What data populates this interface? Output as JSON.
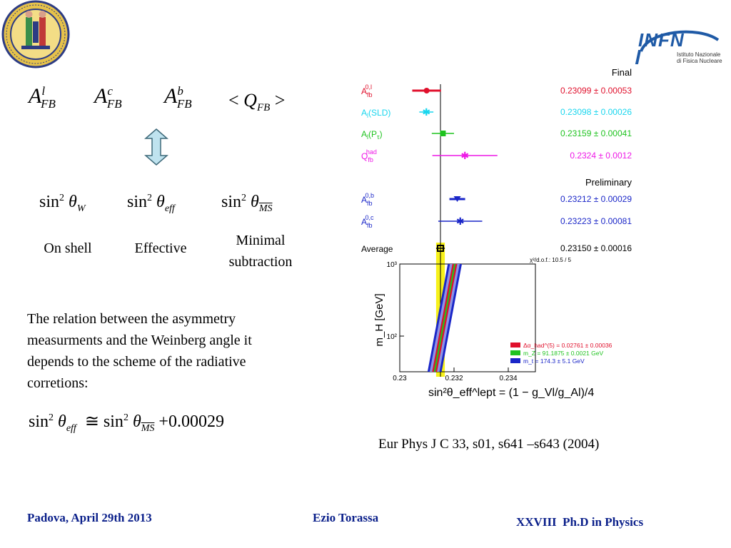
{
  "logos": {
    "seal_lettering": "UNIVERSITAS STUDII PATAVINI",
    "infn_wordmark": "INFN",
    "infn_line1": "Istituto Nazionale",
    "infn_line2": "di Fisica Nucleare"
  },
  "observables": {
    "a1": "A",
    "a1_sup": "l",
    "a1_sub": "FB",
    "a2": "A",
    "a2_sup": "c",
    "a2_sub": "FB",
    "a3": "A",
    "a3_sup": "b",
    "a3_sub": "FB",
    "q_open": "<",
    "q": "Q",
    "q_sub": "FB",
    "q_close": ">"
  },
  "schemes": {
    "sin": "sin",
    "sq": "2",
    "theta": "θ",
    "s1_sub": "W",
    "s2_sub": "eff",
    "s3_sub": "MS",
    "label_on_shell": "On shell",
    "label_effective": "Effective",
    "label_minimal_1": "Minimal",
    "label_minimal_2": "subtraction"
  },
  "paragraph": {
    "line1": "The relation between the asymmetry",
    "line2": "measurments and the Weinberg angle it",
    "line3": "depends to the scheme of the radiative",
    "line4": "corretions:"
  },
  "relation": {
    "sin": "sin",
    "sq": "2",
    "theta": "θ",
    "eff": "eff",
    "approx": "≅",
    "ms": "MS",
    "plus": "+",
    "const": "0.00029"
  },
  "chart_data": {
    "type": "scatter",
    "upper_header_1": "Final",
    "upper_header_2": "Preliminary",
    "measurements": [
      {
        "label": "A_fb^0,l",
        "value": 0.23099,
        "error": 0.00053,
        "text": "0.23099 ± 0.00053",
        "color": "#e0102c",
        "marker": "dot"
      },
      {
        "label": "A_l(SLD)",
        "value": 0.23098,
        "error": 0.00026,
        "text": "0.23098 ± 0.00026",
        "color": "#19d6ee",
        "marker": "star"
      },
      {
        "label": "A_l(P_τ)",
        "value": 0.23159,
        "error": 0.00041,
        "text": "0.23159 ± 0.00041",
        "color": "#1fc31f",
        "marker": "square"
      },
      {
        "label": "Q_fb^had",
        "value": 0.2324,
        "error": 0.0012,
        "text": "0.2324 ± 0.0012",
        "color": "#ee18e6",
        "marker": "star"
      },
      {
        "label": "A_fb^0,b",
        "value": 0.23212,
        "error": 0.00029,
        "text": "0.23212 ± 0.00029",
        "color": "#1a26c8",
        "marker": "triangle"
      },
      {
        "label": "A_fb^0,c",
        "value": 0.23223,
        "error": 0.00081,
        "text": "0.23223 ± 0.00081",
        "color": "#1a26c8",
        "marker": "star"
      },
      {
        "label": "Average",
        "value": 0.2315,
        "error": 0.00016,
        "text": "0.23150 ± 0.00016",
        "color": "#000000",
        "marker": "open-square"
      }
    ],
    "chi2": "χ²/d.o.f.: 10.5 / 5",
    "lower": {
      "ylabel": "m_H  [GeV]",
      "yscale": "log",
      "ylim": [
        32,
        1000
      ],
      "yticks": [
        {
          "label": "10²",
          "value": 100
        },
        {
          "label": "10³",
          "value": 1000
        }
      ],
      "xlabel": "sin²θ_eff^lept = (1 − g_Vl/g_Al)/4",
      "xlim": [
        0.23,
        0.235
      ],
      "xticks": [
        0.23,
        0.232,
        0.234
      ],
      "xtick_labels": [
        "0.23",
        "0.232",
        "0.234"
      ],
      "bands": [
        {
          "name": "Δα_had^(5) = 0.02761 ± 0.00036",
          "color": "#e0102c"
        },
        {
          "name": "m_Z = 91.1875 ± 0.0021 GeV",
          "color": "#1fc31f"
        },
        {
          "name": "m_t = 174.3 ± 5.1 GeV",
          "color": "#1a26c8"
        }
      ],
      "legend_placement": "bottom-right"
    }
  },
  "citation": "Eur Phys J C 33, s01, s641 –s643 (2004)",
  "footer": {
    "left": "Padova, April 29th 2013",
    "center": "Ezio Torassa",
    "right": "XXVIII  Ph.D in Physics"
  }
}
